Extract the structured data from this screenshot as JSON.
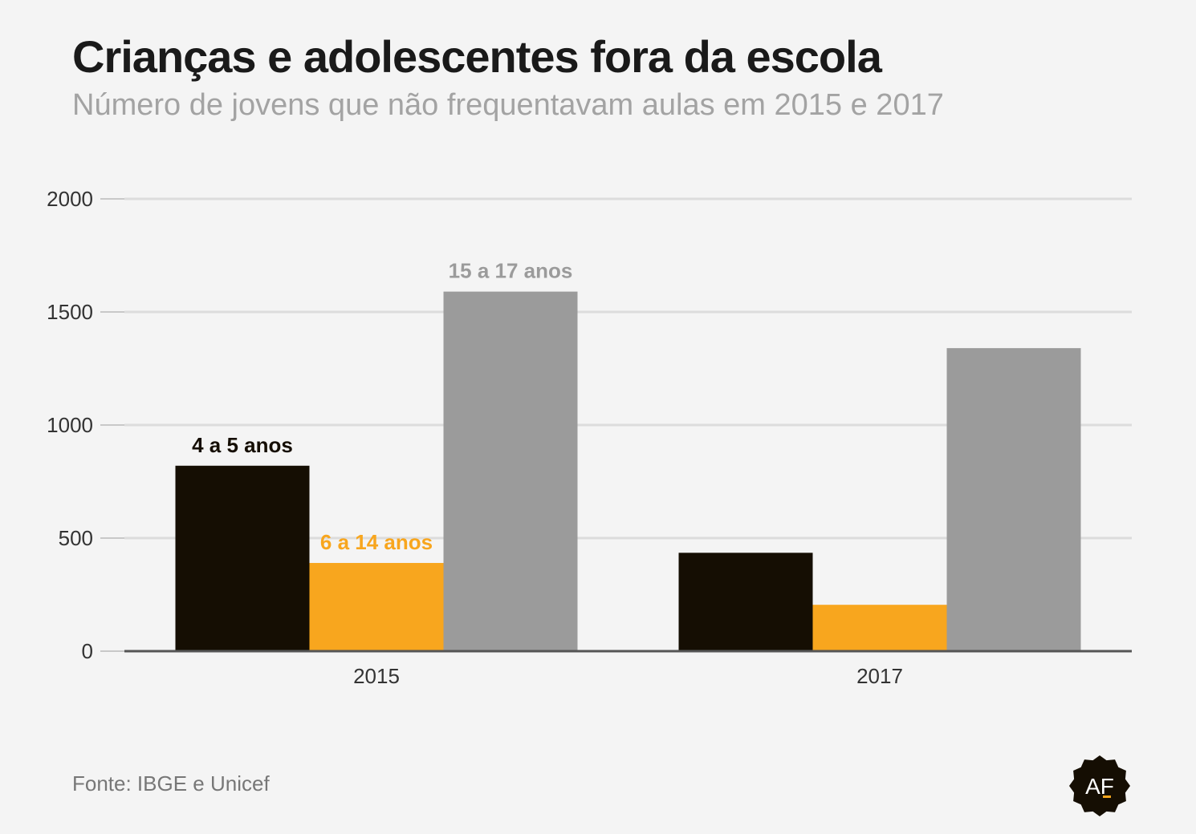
{
  "title": "Crianças e adolescentes fora da escola",
  "subtitle": "Número de jovens que não frequentavam aulas em 2015 e 2017",
  "source": "Fonte: IBGE e Unicef",
  "logo": {
    "text": "AF",
    "icon": "af-badge-icon"
  },
  "colors": {
    "background": "#f4f4f4",
    "grid": "#dcdcdc",
    "axis": "#555555",
    "tick_label": "#333333"
  },
  "chart_data": {
    "type": "bar",
    "categories": [
      "2015",
      "2017"
    ],
    "series": [
      {
        "name": "4 a 5 anos",
        "values": [
          820,
          435
        ],
        "color": "#150e03",
        "label_color": "#150e03",
        "label_category": 0
      },
      {
        "name": "6 a 14 anos",
        "values": [
          390,
          205
        ],
        "color": "#f8a61e",
        "label_color": "#f8a61e",
        "label_category": 0
      },
      {
        "name": "15 a 17 anos",
        "values": [
          1590,
          1340
        ],
        "color": "#9b9b9b",
        "label_color": "#9b9b9b",
        "label_category": 0
      }
    ],
    "yticks": [
      "0",
      "500",
      "1000",
      "1500",
      "2000"
    ],
    "ylim": [
      0,
      2000
    ],
    "grid": true,
    "legend": "labels-above-bars"
  }
}
